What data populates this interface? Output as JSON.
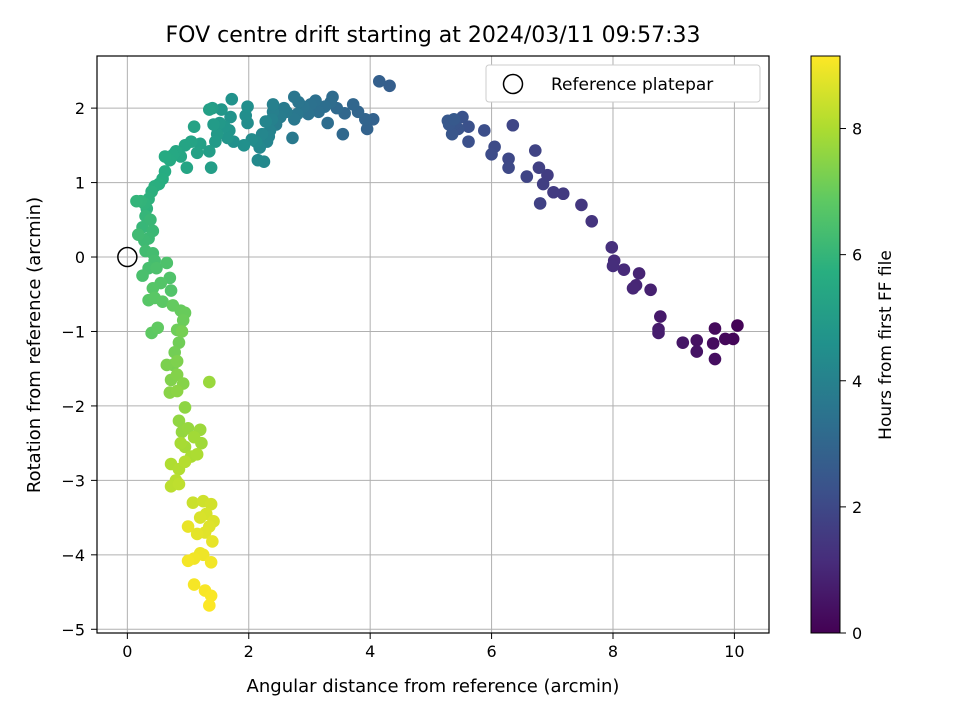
{
  "chart_data": {
    "type": "scatter",
    "title": "FOV centre drift starting at 2024/03/11 09:57:33",
    "xlabel": "Angular distance from reference (arcmin)",
    "ylabel": "Rotation from reference (arcmin)",
    "xlim": [
      -0.5,
      10.57
    ],
    "ylim": [
      -5.05,
      2.7
    ],
    "xticks": [
      0,
      2,
      4,
      6,
      8,
      10
    ],
    "yticks": [
      -5,
      -4,
      -3,
      -2,
      -1,
      0,
      1,
      2
    ],
    "grid": true,
    "legend": {
      "placement": "top-right",
      "entries": [
        "Reference platepar"
      ]
    },
    "reference_point": {
      "x": 0,
      "y": 0
    },
    "colorbar": {
      "label": "Hours from first FF file",
      "min": 0,
      "max": 9.15,
      "ticks": [
        0,
        2,
        4,
        6,
        8
      ],
      "colormap": "viridis"
    },
    "series": [
      {
        "points": [
          [
            10.05,
            -0.92,
            0.05
          ],
          [
            9.98,
            -1.1,
            0.12
          ],
          [
            9.85,
            -1.1,
            0.18
          ],
          [
            9.68,
            -0.96,
            0.25
          ],
          [
            9.65,
            -1.16,
            0.3
          ],
          [
            9.68,
            -1.37,
            0.35
          ],
          [
            9.38,
            -1.12,
            0.42
          ],
          [
            9.38,
            -1.27,
            0.48
          ],
          [
            9.15,
            -1.15,
            0.55
          ],
          [
            8.78,
            -0.8,
            0.65
          ],
          [
            8.75,
            -0.97,
            0.7
          ],
          [
            8.75,
            -1.02,
            0.75
          ],
          [
            8.62,
            -0.44,
            0.85
          ],
          [
            8.43,
            -0.22,
            0.92
          ],
          [
            8.38,
            -0.38,
            0.98
          ],
          [
            8.33,
            -0.42,
            1.02
          ],
          [
            8.18,
            -0.17,
            1.1
          ],
          [
            8.02,
            -0.05,
            1.18
          ],
          [
            8.0,
            -0.12,
            1.22
          ],
          [
            7.98,
            0.13,
            1.28
          ],
          [
            7.65,
            0.48,
            1.4
          ],
          [
            7.48,
            0.7,
            1.48
          ],
          [
            7.18,
            0.85,
            1.58
          ],
          [
            7.02,
            0.87,
            1.62
          ],
          [
            6.92,
            1.1,
            1.66
          ],
          [
            6.85,
            0.98,
            1.7
          ],
          [
            6.78,
            1.2,
            1.75
          ],
          [
            6.8,
            0.72,
            1.8
          ],
          [
            6.72,
            1.43,
            1.84
          ],
          [
            6.58,
            1.08,
            1.88
          ],
          [
            6.35,
            1.77,
            1.95
          ],
          [
            6.28,
            1.32,
            2.0
          ],
          [
            6.28,
            1.2,
            2.03
          ],
          [
            6.05,
            1.48,
            2.1
          ],
          [
            6.0,
            1.38,
            2.14
          ],
          [
            5.88,
            1.7,
            2.2
          ],
          [
            5.62,
            1.55,
            2.27
          ],
          [
            5.62,
            1.75,
            2.3
          ],
          [
            5.52,
            1.88,
            2.34
          ],
          [
            5.45,
            1.72,
            2.38
          ],
          [
            5.4,
            1.8,
            2.42
          ],
          [
            5.35,
            1.65,
            2.46
          ],
          [
            5.3,
            1.78,
            2.5
          ],
          [
            5.28,
            1.83,
            2.53
          ],
          [
            5.38,
            1.85,
            2.56
          ],
          [
            4.32,
            2.3,
            2.75
          ],
          [
            4.15,
            2.36,
            2.8
          ],
          [
            4.05,
            1.85,
            2.88
          ],
          [
            3.95,
            1.72,
            2.92
          ],
          [
            3.92,
            1.85,
            2.96
          ],
          [
            3.8,
            1.95,
            3.0
          ],
          [
            3.72,
            2.05,
            3.04
          ],
          [
            3.58,
            1.93,
            3.08
          ],
          [
            3.55,
            1.65,
            3.12
          ],
          [
            3.45,
            2.0,
            3.16
          ],
          [
            3.38,
            2.15,
            3.2
          ],
          [
            3.35,
            2.08,
            3.24
          ],
          [
            3.3,
            1.8,
            3.28
          ],
          [
            3.25,
            2.02,
            3.32
          ],
          [
            3.15,
            1.95,
            3.36
          ],
          [
            3.1,
            2.1,
            3.4
          ],
          [
            3.02,
            2.05,
            3.44
          ],
          [
            2.98,
            1.92,
            3.48
          ],
          [
            2.9,
            2.02,
            3.53
          ],
          [
            2.82,
            2.08,
            3.57
          ],
          [
            2.75,
            2.15,
            3.61
          ],
          [
            2.8,
            1.92,
            3.65
          ],
          [
            2.75,
            1.85,
            3.69
          ],
          [
            2.72,
            1.6,
            3.73
          ],
          [
            2.62,
            1.95,
            3.77
          ],
          [
            2.58,
            2.0,
            3.81
          ],
          [
            2.52,
            1.88,
            3.85
          ],
          [
            2.45,
            1.78,
            3.89
          ],
          [
            2.4,
            1.95,
            3.93
          ],
          [
            2.4,
            2.05,
            3.97
          ],
          [
            2.38,
            1.85,
            4.01
          ],
          [
            2.35,
            1.7,
            4.05
          ],
          [
            2.33,
            1.62,
            4.09
          ],
          [
            2.3,
            1.55,
            4.13
          ],
          [
            2.28,
            1.82,
            4.17
          ],
          [
            2.22,
            1.65,
            4.21
          ],
          [
            2.18,
            1.47,
            4.25
          ],
          [
            2.25,
            1.28,
            4.29
          ],
          [
            2.15,
            1.3,
            4.33
          ],
          [
            2.12,
            1.55,
            4.37
          ],
          [
            2.05,
            1.58,
            4.41
          ],
          [
            1.98,
            1.8,
            4.45
          ],
          [
            1.95,
            1.9,
            4.49
          ],
          [
            1.98,
            2.02,
            4.53
          ],
          [
            1.92,
            1.5,
            4.57
          ],
          [
            1.75,
            1.55,
            4.62
          ],
          [
            1.72,
            2.12,
            4.66
          ],
          [
            1.7,
            1.88,
            4.7
          ],
          [
            1.68,
            1.7,
            4.74
          ],
          [
            1.65,
            1.6,
            4.78
          ],
          [
            1.6,
            1.75,
            4.82
          ],
          [
            1.55,
            1.98,
            4.86
          ],
          [
            1.52,
            1.8,
            4.9
          ],
          [
            1.48,
            1.65,
            4.94
          ],
          [
            1.45,
            1.55,
            4.98
          ],
          [
            1.42,
            1.78,
            5.02
          ],
          [
            1.4,
            2.0,
            5.06
          ],
          [
            1.35,
            1.42,
            5.1
          ],
          [
            1.38,
            1.2,
            5.14
          ],
          [
            1.35,
            1.98,
            5.18
          ],
          [
            1.2,
            1.52,
            5.22
          ],
          [
            1.15,
            1.4,
            5.26
          ],
          [
            1.1,
            1.75,
            5.3
          ],
          [
            1.05,
            1.55,
            5.34
          ],
          [
            0.95,
            1.5,
            5.38
          ],
          [
            0.98,
            1.2,
            5.42
          ],
          [
            0.88,
            1.35,
            5.46
          ],
          [
            0.8,
            1.42,
            5.5
          ],
          [
            0.75,
            1.37,
            5.54
          ],
          [
            0.7,
            1.3,
            5.58
          ],
          [
            0.62,
            1.35,
            5.62
          ],
          [
            0.62,
            1.15,
            5.66
          ],
          [
            0.58,
            1.05,
            5.7
          ],
          [
            0.52,
            0.98,
            5.74
          ],
          [
            0.45,
            0.95,
            5.78
          ],
          [
            0.4,
            0.88,
            5.82
          ],
          [
            0.35,
            0.78,
            5.86
          ],
          [
            0.32,
            0.65,
            5.9
          ],
          [
            0.28,
            0.72,
            5.94
          ],
          [
            0.22,
            0.75,
            5.97
          ],
          [
            0.15,
            0.75,
            6.0
          ],
          [
            0.3,
            0.55,
            6.04
          ],
          [
            0.25,
            0.4,
            6.08
          ],
          [
            0.38,
            0.5,
            6.12
          ],
          [
            0.42,
            0.35,
            6.16
          ],
          [
            0.35,
            0.25,
            6.2
          ],
          [
            0.28,
            0.22,
            6.24
          ],
          [
            0.18,
            0.3,
            6.28
          ],
          [
            0.3,
            0.08,
            6.32
          ],
          [
            0.42,
            0.05,
            6.36
          ],
          [
            0.45,
            -0.05,
            6.4
          ],
          [
            0.35,
            -0.15,
            6.44
          ],
          [
            0.25,
            -0.25,
            6.48
          ],
          [
            0.48,
            -0.15,
            6.52
          ],
          [
            0.65,
            -0.08,
            6.56
          ],
          [
            0.7,
            -0.28,
            6.6
          ],
          [
            0.72,
            -0.45,
            6.64
          ],
          [
            0.55,
            -0.35,
            6.68
          ],
          [
            0.42,
            -0.42,
            6.72
          ],
          [
            0.35,
            -0.58,
            6.76
          ],
          [
            0.45,
            -0.55,
            6.8
          ],
          [
            0.58,
            -0.6,
            6.84
          ],
          [
            0.4,
            -1.02,
            6.88
          ],
          [
            0.5,
            -0.95,
            6.92
          ],
          [
            0.75,
            -0.65,
            6.96
          ],
          [
            0.88,
            -0.72,
            7.0
          ],
          [
            0.95,
            -0.75,
            7.04
          ],
          [
            0.92,
            -0.85,
            7.08
          ],
          [
            0.82,
            -0.98,
            7.12
          ],
          [
            0.85,
            -1.15,
            7.16
          ],
          [
            0.78,
            -1.28,
            7.2
          ],
          [
            0.9,
            -1.0,
            7.24
          ],
          [
            0.75,
            -1.45,
            7.28
          ],
          [
            0.65,
            -1.45,
            7.32
          ],
          [
            0.82,
            -1.4,
            7.36
          ],
          [
            0.72,
            -1.65,
            7.4
          ],
          [
            0.82,
            -1.58,
            7.44
          ],
          [
            0.92,
            -1.7,
            7.48
          ],
          [
            0.7,
            -1.82,
            7.52
          ],
          [
            0.82,
            -1.8,
            7.56
          ],
          [
            0.95,
            -2.02,
            7.6
          ],
          [
            0.85,
            -2.2,
            7.64
          ],
          [
            0.9,
            -2.35,
            7.68
          ],
          [
            1.0,
            -2.3,
            7.72
          ],
          [
            1.35,
            -1.68,
            7.76
          ],
          [
            1.2,
            -2.32,
            7.8
          ],
          [
            1.22,
            -2.5,
            7.84
          ],
          [
            1.1,
            -2.42,
            7.88
          ],
          [
            0.95,
            -2.55,
            7.92
          ],
          [
            0.88,
            -2.5,
            7.96
          ],
          [
            1.05,
            -2.68,
            8.0
          ],
          [
            1.15,
            -2.65,
            8.04
          ],
          [
            0.72,
            -2.78,
            8.08
          ],
          [
            0.85,
            -2.85,
            8.12
          ],
          [
            0.95,
            -2.75,
            8.16
          ],
          [
            0.8,
            -3.0,
            8.2
          ],
          [
            0.72,
            -3.08,
            8.24
          ],
          [
            0.85,
            -3.05,
            8.28
          ],
          [
            1.08,
            -3.3,
            8.45
          ],
          [
            1.25,
            -3.28,
            8.5
          ],
          [
            1.38,
            -3.32,
            8.55
          ],
          [
            1.3,
            -3.45,
            8.6
          ],
          [
            1.2,
            -3.5,
            8.64
          ],
          [
            1.42,
            -3.55,
            8.68
          ],
          [
            1.35,
            -3.62,
            8.72
          ],
          [
            1.28,
            -3.7,
            8.76
          ],
          [
            1.15,
            -3.72,
            8.8
          ],
          [
            1.4,
            -3.82,
            8.84
          ],
          [
            1.0,
            -3.62,
            8.88
          ],
          [
            1.2,
            -3.98,
            8.92
          ],
          [
            1.25,
            -4.0,
            8.95
          ],
          [
            1.1,
            -4.05,
            8.98
          ],
          [
            1.38,
            -4.1,
            9.0
          ],
          [
            1.0,
            -4.08,
            9.03
          ],
          [
            1.1,
            -4.4,
            9.06
          ],
          [
            1.28,
            -4.48,
            9.08
          ],
          [
            1.38,
            -4.55,
            9.1
          ],
          [
            1.35,
            -4.68,
            9.13
          ]
        ]
      }
    ]
  }
}
